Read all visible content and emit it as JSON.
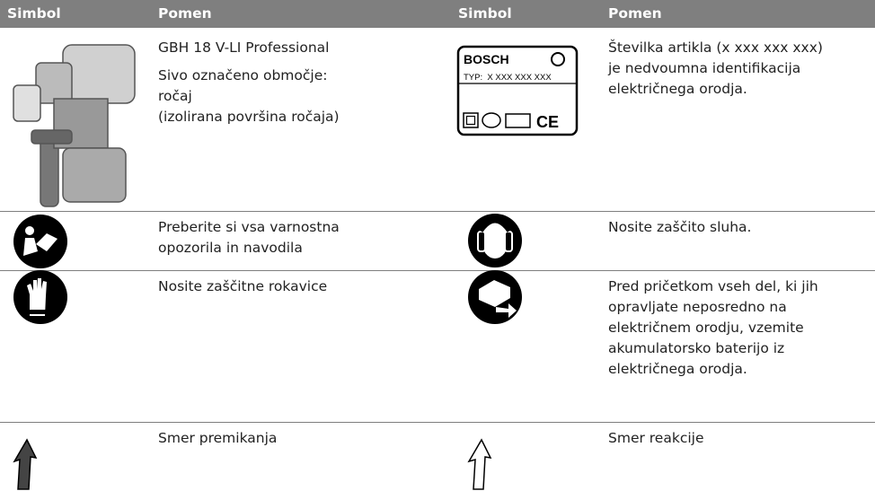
{
  "table": {
    "header": [
      "Simbol",
      "Pomen",
      "Simbol",
      "Pomen"
    ],
    "rows": [
      {
        "left": [
          [
            "GBH 18 V-LI Professional"
          ],
          [
            "Sivo označeno območje:",
            "ročaj",
            "(izolirana površina ročaja)"
          ]
        ],
        "right": [
          [
            "Številka artikla (x xxx xxx xxx)",
            "je nedvoumna identifikacija",
            "električnega orodja."
          ]
        ]
      },
      {
        "left": [
          [
            "Preberite si vsa varnostna",
            "opozorila in navodila"
          ]
        ],
        "right": [
          [
            "Nosite zaščito sluha."
          ]
        ]
      },
      {
        "left": [
          [
            "Nosite zaščitne rokavice"
          ]
        ],
        "right": [
          [
            "Pred pričetkom vseh del, ki jih",
            "opravljate neposredno na",
            "električnem orodju, vzemite",
            "akumulatorsko baterijo iz",
            "električnega orodja."
          ]
        ]
      },
      {
        "left": [
          [
            "Smer premikanja"
          ]
        ],
        "right": [
          [
            "Smer reakcije"
          ]
        ]
      }
    ],
    "label": {
      "brand": "BOSCH",
      "type": "TYP:  X XXX XXX XXX",
      "mark": "CE"
    }
  }
}
